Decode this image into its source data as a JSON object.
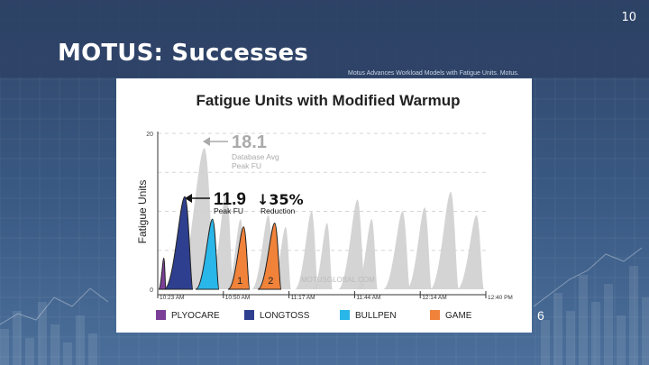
{
  "slide": {
    "number": "10",
    "title": "MOTUS: Successes",
    "source": "Motus Advances Workload Models with Fatigue Units. Motus.",
    "side_number": "6"
  },
  "chart_data": {
    "type": "area",
    "title": "Fatigue Units with Modified Warmup",
    "ylabel": "Fatigue Units",
    "xlabel": "",
    "ylim": [
      0,
      20
    ],
    "y_ticks": [
      "0",
      "20"
    ],
    "x_tick_labels": [
      "10:23 AM",
      "10:50 AM",
      "11:17 AM",
      "11:44 AM",
      "12:14 AM",
      "12:40 PM"
    ],
    "grid": true,
    "legend_position": "bottom",
    "watermark": "MOTUSGLOBAL.COM",
    "reference_series": {
      "color": "#cfcfcf",
      "peaks": [
        18.1,
        12.5,
        9.0,
        9.5,
        8.0,
        10.0,
        8.5,
        11.5,
        9.0,
        10.0,
        10.5,
        12.5,
        9.5
      ]
    },
    "modified_series": [
      {
        "name": "PLYOCARE",
        "color": "#7b3f98",
        "peaks": [
          4.0,
          3.0
        ]
      },
      {
        "name": "LONGTOSS",
        "color": "#2e3f8f",
        "peaks": [
          11.9
        ]
      },
      {
        "name": "BULLPEN",
        "color": "#29b6e8",
        "peaks": [
          9.0
        ]
      },
      {
        "name": "GAME",
        "color": "#f0823a",
        "peaks": [
          8.0,
          8.5
        ],
        "inning_labels": [
          "1",
          "2"
        ]
      }
    ],
    "annotations": {
      "database_avg": {
        "value": "18.1",
        "label_line1": "Database Avg",
        "label_line2": "Peak FU"
      },
      "peak": {
        "value": "11.9",
        "label": "Peak FU"
      },
      "reduction": {
        "value": "↓35%",
        "label": "Reduction"
      }
    }
  }
}
